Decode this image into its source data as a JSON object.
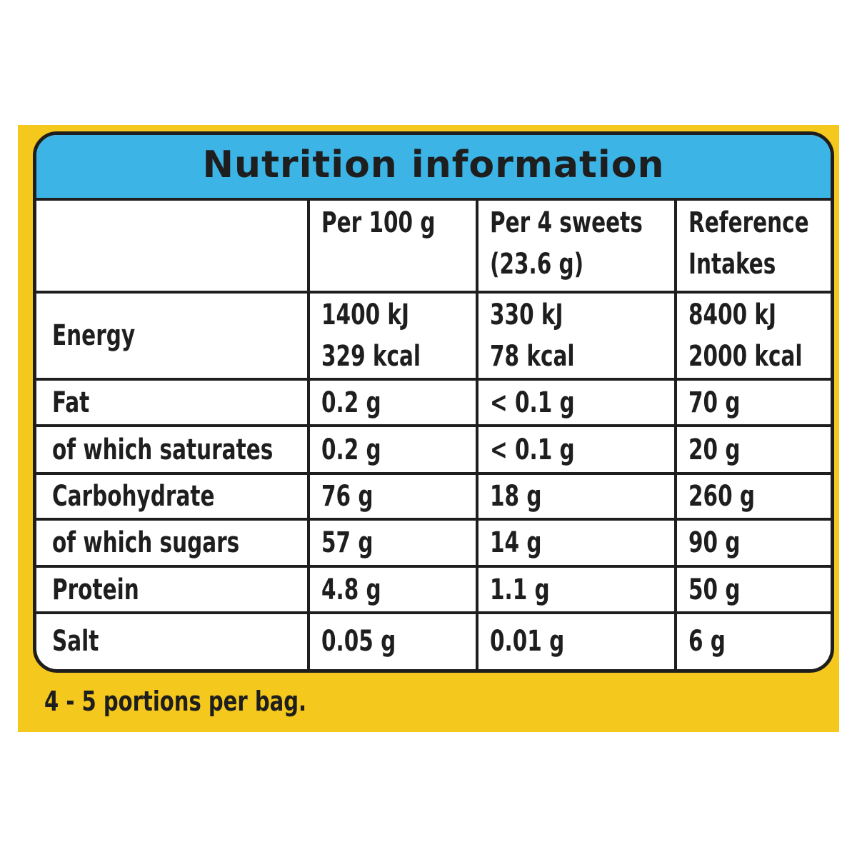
{
  "title": "Nutrition information",
  "table": {
    "headers": [
      [
        "Per 100 g"
      ],
      [
        "Per 4 sweets",
        "(23.6 g)"
      ],
      [
        "Reference",
        "Intakes"
      ]
    ],
    "rows": [
      [
        [
          "Energy"
        ],
        [
          "1400 kJ",
          "329 kcal"
        ],
        [
          "330 kJ",
          "78 kcal"
        ],
        [
          "8400 kJ",
          "2000 kcal"
        ]
      ],
      [
        [
          "Fat"
        ],
        [
          "0.2 g"
        ],
        [
          "< 0.1 g"
        ],
        [
          "70 g"
        ]
      ],
      [
        [
          "of which saturates"
        ],
        [
          "0.2 g"
        ],
        [
          "< 0.1 g"
        ],
        [
          "20 g"
        ]
      ],
      [
        [
          "Carbohydrate"
        ],
        [
          "76 g"
        ],
        [
          "18 g"
        ],
        [
          "260 g"
        ]
      ],
      [
        [
          "of which sugars"
        ],
        [
          "57 g"
        ],
        [
          "14 g"
        ],
        [
          "90 g"
        ]
      ],
      [
        [
          "Protein"
        ],
        [
          "4.8 g"
        ],
        [
          "1.1 g"
        ],
        [
          "50 g"
        ]
      ],
      [
        [
          "Salt"
        ],
        [
          "0.05 g"
        ],
        [
          "0.01 g"
        ],
        [
          "6 g"
        ]
      ]
    ]
  },
  "footer": "4 - 5 portions per bag."
}
